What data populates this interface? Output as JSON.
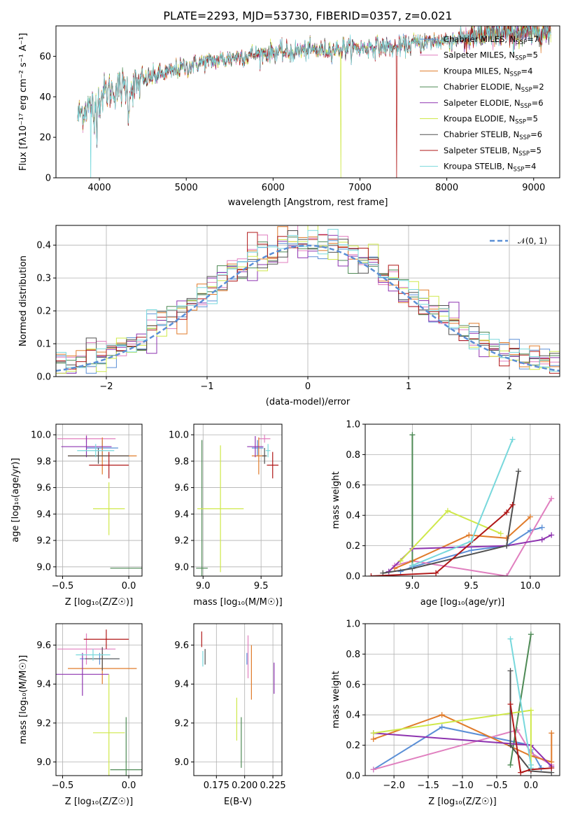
{
  "title": "PLATE=2293, MJD=53730, FIBERID=0357, z=0.021",
  "colors": {
    "Chabrier MILES": "#5b8fd6",
    "Salpeter MILES": "#e07fbf",
    "Kroupa MILES": "#e07b2a",
    "Chabrier ELODIE": "#4e8a55",
    "Salpeter ELODIE": "#8e34b0",
    "Kroupa ELODIE": "#cfe84a",
    "Chabrier STELIB": "#505050",
    "Salpeter STELIB": "#b01818",
    "Kroupa STELIB": "#78d8dc"
  },
  "chart_data": [
    {
      "id": "spectrum",
      "type": "line",
      "title": "PLATE=2293, MJD=53730, FIBERID=0357, z=0.021",
      "xlabel": "wavelength [Angstrom, rest frame]",
      "ylabel": "Flux [fλ10⁻¹⁷ erg cm⁻² s⁻¹ A⁻¹]",
      "xlim": [
        3500,
        9300
      ],
      "ylim": [
        0,
        75
      ],
      "xticks": [
        "4000",
        "5000",
        "6000",
        "7000",
        "8000",
        "9000"
      ],
      "yticks": [
        "0",
        "20",
        "40",
        "60"
      ],
      "legend_position": "top-right",
      "legend": [
        {
          "name": "Chabrier MILES, N",
          "sub": "SSP",
          "tail": "=7"
        },
        {
          "name": "Salpeter MILES, N",
          "sub": "SSP",
          "tail": "=5"
        },
        {
          "name": "Kroupa MILES, N",
          "sub": "SSP",
          "tail": "=4"
        },
        {
          "name": "Chabrier ELODIE, N",
          "sub": "SSP",
          "tail": "=2"
        },
        {
          "name": "Salpeter ELODIE, N",
          "sub": "SSP",
          "tail": "=6"
        },
        {
          "name": "Kroupa ELODIE, N",
          "sub": "SSP",
          "tail": "=5"
        },
        {
          "name": "Chabrier STELIB, N",
          "sub": "SSP",
          "tail": "=6"
        },
        {
          "name": "Salpeter STELIB, N",
          "sub": "SSP",
          "tail": "=5"
        },
        {
          "name": "Kroupa STELIB, N",
          "sub": "SSP",
          "tail": "=4"
        }
      ],
      "continuum": [
        [
          3750,
          30
        ],
        [
          3850,
          35
        ],
        [
          3950,
          36
        ],
        [
          4050,
          42
        ],
        [
          4200,
          44
        ],
        [
          4400,
          45
        ],
        [
          4600,
          50
        ],
        [
          4800,
          52
        ],
        [
          5000,
          55
        ],
        [
          5200,
          57
        ],
        [
          5400,
          58
        ],
        [
          5600,
          60
        ],
        [
          5800,
          61
        ],
        [
          6000,
          62
        ],
        [
          6200,
          62
        ],
        [
          6400,
          63
        ],
        [
          6600,
          63
        ],
        [
          6800,
          64
        ],
        [
          7000,
          64
        ],
        [
          7200,
          65
        ],
        [
          7400,
          64
        ],
        [
          7600,
          66
        ],
        [
          7800,
          67
        ],
        [
          8000,
          68
        ],
        [
          8200,
          69
        ],
        [
          8400,
          70
        ],
        [
          8600,
          71
        ],
        [
          8800,
          71
        ],
        [
          9000,
          72
        ],
        [
          9200,
          72
        ]
      ],
      "dropouts": [
        [
          3900,
          "Kroupa STELIB"
        ],
        [
          6780,
          "Kroupa ELODIE"
        ],
        [
          7420,
          "Salpeter STELIB"
        ]
      ]
    },
    {
      "id": "residuals",
      "type": "histogram",
      "xlabel": "(data-model)/error",
      "ylabel": "Normed distribution",
      "xlim": [
        -2.5,
        2.5
      ],
      "ylim": [
        0,
        0.46
      ],
      "xticks": [
        "−2",
        "−1",
        "0",
        "1",
        "2"
      ],
      "yticks": [
        "0.0",
        "0.1",
        "0.2",
        "0.3",
        "0.4"
      ],
      "legend_position": "top-right",
      "reference": "𝒩(0, 1)",
      "bin_width": 0.1
    },
    {
      "id": "age_vs_Z",
      "type": "errorbar",
      "xlabel": "Z [log₁₀(Z/Z☉)]",
      "ylabel": "age  [log₁₀(age/yr)]",
      "xlim": [
        -0.55,
        0.1
      ],
      "ylim": [
        8.93,
        10.08
      ],
      "xticks": [
        [
          -0.5,
          "−0.5"
        ],
        [
          0,
          "0.0"
        ]
      ],
      "yticks": [
        [
          9.0,
          "9.0"
        ],
        [
          9.2,
          "9.2"
        ],
        [
          9.4,
          "9.4"
        ],
        [
          9.6,
          "9.6"
        ],
        [
          9.8,
          "9.8"
        ],
        [
          10.0,
          "10.0"
        ]
      ],
      "points": [
        {
          "s": "Chabrier MILES",
          "x": -0.2,
          "xe": 0.12,
          "y": 9.9,
          "ye": 0.06
        },
        {
          "s": "Salpeter MILES",
          "x": -0.32,
          "xe": 0.22,
          "y": 9.97,
          "ye": 0.03
        },
        {
          "s": "Kroupa MILES",
          "x": -0.2,
          "xe": 0.26,
          "y": 9.84,
          "ye": 0.14
        },
        {
          "s": "Chabrier ELODIE",
          "x": -0.02,
          "xe": 0.12,
          "y": 8.99,
          "ye": 0.0
        },
        {
          "s": "Salpeter ELODIE",
          "x": -0.32,
          "xe": 0.19,
          "y": 9.91,
          "ye": 0.08
        },
        {
          "s": "Kroupa ELODIE",
          "x": -0.15,
          "xe": 0.12,
          "y": 9.44,
          "ye": 0.2
        },
        {
          "s": "Chabrier STELIB",
          "x": -0.23,
          "xe": 0.23,
          "y": 9.84,
          "ye": 0.06
        },
        {
          "s": "Salpeter STELIB",
          "x": -0.15,
          "xe": 0.15,
          "y": 9.77,
          "ye": 0.1
        },
        {
          "s": "Kroupa STELIB",
          "x": -0.25,
          "xe": 0.14,
          "y": 9.88,
          "ye": 0.05
        }
      ]
    },
    {
      "id": "age_vs_mass",
      "type": "errorbar",
      "xlabel": "mass [log₁₀(M/M☉)]",
      "ylabel": "",
      "xlim": [
        8.92,
        9.68
      ],
      "ylim": [
        8.93,
        10.08
      ],
      "xticks": [
        [
          9.0,
          "9.0"
        ],
        [
          9.5,
          "9.5"
        ]
      ],
      "yticks": [
        [
          9.0,
          "9.0"
        ],
        [
          9.2,
          "9.2"
        ],
        [
          9.4,
          "9.4"
        ],
        [
          9.6,
          "9.6"
        ],
        [
          9.8,
          "9.8"
        ],
        [
          10.0,
          "10.0"
        ]
      ],
      "points": [
        {
          "s": "Chabrier MILES",
          "x": 9.47,
          "xe": 0.05,
          "y": 9.9,
          "ye": 0.06
        },
        {
          "s": "Salpeter MILES",
          "x": 9.53,
          "xe": 0.05,
          "y": 9.97,
          "ye": 0.03
        },
        {
          "s": "Kroupa MILES",
          "x": 9.48,
          "xe": 0.06,
          "y": 9.84,
          "ye": 0.14
        },
        {
          "s": "Chabrier ELODIE",
          "x": 8.99,
          "xe": 0.05,
          "y": 8.99,
          "ye": 0.97
        },
        {
          "s": "Salpeter ELODIE",
          "x": 9.45,
          "xe": 0.07,
          "y": 9.91,
          "ye": 0.08
        },
        {
          "s": "Kroupa ELODIE",
          "x": 9.15,
          "xe": 0.2,
          "y": 9.44,
          "ye": 0.48
        },
        {
          "s": "Chabrier STELIB",
          "x": 9.53,
          "xe": 0.02,
          "y": 9.84,
          "ye": 0.06
        },
        {
          "s": "Salpeter STELIB",
          "x": 9.6,
          "xe": 0.05,
          "y": 9.77,
          "ye": 0.1
        },
        {
          "s": "Kroupa STELIB",
          "x": 9.56,
          "xe": 0.02,
          "y": 9.88,
          "ye": 0.05
        }
      ]
    },
    {
      "id": "weight_vs_age",
      "type": "line",
      "xlabel": "age  [log₁₀(age/yr)]",
      "ylabel": "mass weight",
      "xlim": [
        8.6,
        10.25
      ],
      "ylim": [
        0,
        1
      ],
      "xticks": [
        [
          9.0,
          "9.0"
        ],
        [
          9.5,
          "9.5"
        ],
        [
          10.0,
          "10.0"
        ]
      ],
      "yticks": [
        [
          0,
          "0.0"
        ],
        [
          0.2,
          "0.2"
        ],
        [
          0.4,
          "0.4"
        ],
        [
          0.6,
          "0.6"
        ],
        [
          0.8,
          "0.8"
        ],
        [
          1.0,
          "1.0"
        ]
      ],
      "series": [
        {
          "s": "Chabrier MILES",
          "x": [
            8.9,
            9.0,
            9.5,
            9.8,
            10.0,
            10.1
          ],
          "y": [
            0.03,
            0.06,
            0.17,
            0.2,
            0.3,
            0.32
          ]
        },
        {
          "s": "Salpeter MILES",
          "x": [
            8.85,
            9.0,
            9.8,
            10.18
          ],
          "y": [
            0.07,
            0.1,
            0.0,
            0.51
          ]
        },
        {
          "s": "Kroupa MILES",
          "x": [
            8.85,
            9.0,
            9.48,
            9.8,
            10.0
          ],
          "y": [
            0.05,
            0.1,
            0.27,
            0.25,
            0.39
          ]
        },
        {
          "s": "Chabrier ELODIE",
          "x": [
            9.0,
            9.0
          ],
          "y": [
            0.07,
            0.93
          ]
        },
        {
          "s": "Salpeter ELODIE",
          "x": [
            8.8,
            9.0,
            9.8,
            10.1,
            10.18
          ],
          "y": [
            0.03,
            0.18,
            0.2,
            0.24,
            0.27
          ]
        },
        {
          "s": "Kroupa ELODIE",
          "x": [
            8.9,
            9.3,
            9.75
          ],
          "y": [
            0.1,
            0.43,
            0.28
          ]
        },
        {
          "s": "Chabrier STELIB",
          "x": [
            8.75,
            9.0,
            9.8,
            9.9
          ],
          "y": [
            0.02,
            0.05,
            0.2,
            0.69
          ]
        },
        {
          "s": "Salpeter STELIB",
          "x": [
            8.65,
            9.2,
            9.8,
            9.85
          ],
          "y": [
            0.0,
            0.02,
            0.42,
            0.47
          ]
        },
        {
          "s": "Kroupa STELIB",
          "x": [
            9.0,
            9.5,
            9.85
          ],
          "y": [
            0.07,
            0.23,
            0.9
          ]
        }
      ]
    },
    {
      "id": "mass_vs_Z",
      "type": "errorbar",
      "xlabel": "Z [log₁₀(Z/Z☉)]",
      "ylabel": "mass [log₁₀(M/M☉)]",
      "xlim": [
        -0.55,
        0.1
      ],
      "ylim": [
        8.93,
        9.71
      ],
      "xticks": [
        [
          -0.5,
          "−0.5"
        ],
        [
          0,
          "0.0"
        ]
      ],
      "yticks": [
        [
          9.0,
          "9.0"
        ],
        [
          9.2,
          "9.2"
        ],
        [
          9.4,
          "9.4"
        ],
        [
          9.6,
          "9.6"
        ]
      ],
      "points": [
        {
          "s": "Chabrier MILES",
          "x": -0.22,
          "xe": 0.15,
          "y": 9.53,
          "ye": 0.03
        },
        {
          "s": "Salpeter MILES",
          "x": -0.32,
          "xe": 0.22,
          "y": 9.58,
          "ye": 0.08
        },
        {
          "s": "Kroupa MILES",
          "x": -0.2,
          "xe": 0.26,
          "y": 9.48,
          "ye": 0.08
        },
        {
          "s": "Chabrier ELODIE",
          "x": -0.02,
          "xe": 0.12,
          "y": 8.96,
          "ye": 0.27
        },
        {
          "s": "Salpeter ELODIE",
          "x": -0.35,
          "xe": 0.2,
          "y": 9.45,
          "ye": 0.11
        },
        {
          "s": "Kroupa ELODIE",
          "x": -0.15,
          "xe": 0.12,
          "y": 9.15,
          "ye": 0.3
        },
        {
          "s": "Chabrier STELIB",
          "x": -0.2,
          "xe": 0.13,
          "y": 9.53,
          "ye": 0.06
        },
        {
          "s": "Salpeter STELIB",
          "x": -0.17,
          "xe": 0.17,
          "y": 9.63,
          "ye": 0.05
        },
        {
          "s": "Kroupa STELIB",
          "x": -0.27,
          "xe": 0.13,
          "y": 9.55,
          "ye": 0.03
        }
      ]
    },
    {
      "id": "mass_vs_ebv",
      "type": "errorbar",
      "xlabel": "E(B-V)",
      "ylabel": "",
      "xlim": [
        0.155,
        0.233
      ],
      "ylim": [
        8.93,
        9.71
      ],
      "xticks": [
        [
          0.175,
          "0.175"
        ],
        [
          0.2,
          "0.200"
        ],
        [
          0.225,
          "0.225"
        ]
      ],
      "yticks": [
        [
          9.0,
          "9.0"
        ],
        [
          9.2,
          "9.2"
        ],
        [
          9.4,
          "9.4"
        ],
        [
          9.6,
          "9.6"
        ]
      ],
      "points": [
        {
          "s": "Chabrier MILES",
          "x": 0.202,
          "xe": 0,
          "y": 9.53,
          "ye": 0.03
        },
        {
          "s": "Salpeter MILES",
          "x": 0.203,
          "xe": 0,
          "y": 9.54,
          "ye": 0.11
        },
        {
          "s": "Kroupa MILES",
          "x": 0.206,
          "xe": 0,
          "y": 9.46,
          "ye": 0.14
        },
        {
          "s": "Chabrier ELODIE",
          "x": 0.197,
          "xe": 0,
          "y": 9.1,
          "ye": 0.13
        },
        {
          "s": "Salpeter ELODIE",
          "x": 0.226,
          "xe": 0,
          "y": 9.43,
          "ye": 0.08
        },
        {
          "s": "Kroupa ELODIE",
          "x": 0.193,
          "xe": 0,
          "y": 9.22,
          "ye": 0.11
        },
        {
          "s": "Chabrier STELIB",
          "x": 0.165,
          "xe": 0,
          "y": 9.54,
          "ye": 0.04
        },
        {
          "s": "Salpeter STELIB",
          "x": 0.162,
          "xe": 0,
          "y": 9.63,
          "ye": 0.04
        },
        {
          "s": "Kroupa STELIB",
          "x": 0.163,
          "xe": 0,
          "y": 9.53,
          "ye": 0.04
        }
      ]
    },
    {
      "id": "weight_vs_Z",
      "type": "line",
      "xlabel": "Z [log₁₀(Z/Z☉)]",
      "ylabel": "mass weight",
      "xlim": [
        -2.42,
        0.42
      ],
      "ylim": [
        0,
        1
      ],
      "xticks": [
        [
          -2,
          "−2.0"
        ],
        [
          -1.5,
          "−1.5"
        ],
        [
          -1,
          "−1.0"
        ],
        [
          -0.5,
          "−0.5"
        ],
        [
          0,
          "0.0"
        ]
      ],
      "yticks": [
        [
          0,
          "0.0"
        ],
        [
          0.2,
          "0.2"
        ],
        [
          0.4,
          "0.4"
        ],
        [
          0.6,
          "0.6"
        ],
        [
          0.8,
          "0.8"
        ],
        [
          1.0,
          "1.0"
        ]
      ],
      "series": [
        {
          "s": "Chabrier MILES",
          "x": [
            -2.3,
            -1.3,
            0.0,
            0.0,
            0.15
          ],
          "y": [
            0.04,
            0.32,
            0.2,
            0.17,
            0.05
          ]
        },
        {
          "s": "Salpeter MILES",
          "x": [
            -2.3,
            -0.2,
            0.0,
            0.3
          ],
          "y": [
            0.04,
            0.3,
            0.15,
            0.07
          ]
        },
        {
          "s": "Kroupa MILES",
          "x": [
            -2.3,
            -1.3,
            0.0,
            0.3,
            0.3
          ],
          "y": [
            0.24,
            0.4,
            0.13,
            0.09,
            0.28
          ]
        },
        {
          "s": "Chabrier ELODIE",
          "x": [
            -0.3,
            0.0
          ],
          "y": [
            0.07,
            0.93
          ]
        },
        {
          "s": "Salpeter ELODIE",
          "x": [
            -2.3,
            0.0,
            0.3
          ],
          "y": [
            0.28,
            0.2,
            0.06
          ]
        },
        {
          "s": "Kroupa ELODIE",
          "x": [
            -2.3,
            -0.3,
            0.0,
            0.0
          ],
          "y": [
            0.28,
            0.41,
            0.43,
            0.07
          ]
        },
        {
          "s": "Chabrier STELIB",
          "x": [
            -0.3,
            -0.3,
            0.0,
            0.3
          ],
          "y": [
            0.69,
            0.2,
            0.03,
            0.02
          ]
        },
        {
          "s": "Salpeter STELIB",
          "x": [
            -0.3,
            -0.15,
            0.0,
            0.3
          ],
          "y": [
            0.47,
            0.02,
            0.04,
            0.05
          ]
        },
        {
          "s": "Kroupa STELIB",
          "x": [
            -0.3,
            0.0,
            0.0
          ],
          "y": [
            0.9,
            0.07,
            0.05
          ]
        }
      ]
    }
  ]
}
